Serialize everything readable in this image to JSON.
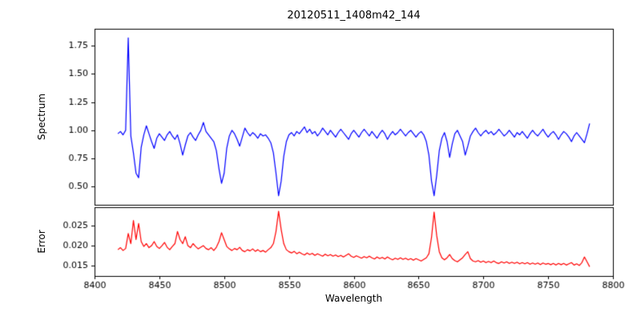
{
  "figure": {
    "title": "20120511_1408m42_144",
    "xlabel": "Wavelength",
    "background": "#ffffff",
    "spine_color": "#000000"
  },
  "axes": {
    "xlim": [
      8400,
      8800
    ],
    "xticks": [
      8400,
      8450,
      8500,
      8550,
      8600,
      8650,
      8700,
      8750,
      8800
    ],
    "xtick_labels": [
      "8400",
      "8450",
      "8500",
      "8550",
      "8600",
      "8650",
      "8700",
      "8750",
      "8800"
    ]
  },
  "chart_data": [
    {
      "type": "line",
      "name": "spectrum",
      "ylabel": "Spectrum",
      "color": "#0000ff",
      "ylim": [
        0.34,
        1.9
      ],
      "yticks": [
        0.5,
        0.75,
        1.0,
        1.25,
        1.5,
        1.75
      ],
      "ytick_labels": [
        "0.50",
        "0.75",
        "1.00",
        "1.25",
        "1.50",
        "1.75"
      ],
      "x": [
        8418,
        8420,
        8422,
        8424,
        8426,
        8428,
        8430,
        8432,
        8434,
        8436,
        8438,
        8440,
        8442,
        8444,
        8446,
        8448,
        8450,
        8452,
        8454,
        8456,
        8458,
        8460,
        8462,
        8464,
        8466,
        8468,
        8470,
        8472,
        8474,
        8476,
        8478,
        8480,
        8482,
        8484,
        8486,
        8488,
        8490,
        8492,
        8494,
        8496,
        8498,
        8500,
        8502,
        8504,
        8506,
        8508,
        8510,
        8512,
        8514,
        8516,
        8518,
        8520,
        8522,
        8524,
        8526,
        8528,
        8530,
        8532,
        8534,
        8536,
        8538,
        8540,
        8542,
        8544,
        8546,
        8548,
        8550,
        8552,
        8554,
        8556,
        8558,
        8560,
        8562,
        8564,
        8566,
        8568,
        8570,
        8572,
        8574,
        8576,
        8578,
        8580,
        8582,
        8584,
        8586,
        8588,
        8590,
        8592,
        8594,
        8596,
        8598,
        8600,
        8602,
        8604,
        8606,
        8608,
        8610,
        8612,
        8614,
        8616,
        8618,
        8620,
        8622,
        8624,
        8626,
        8628,
        8630,
        8632,
        8634,
        8636,
        8638,
        8640,
        8642,
        8644,
        8646,
        8648,
        8650,
        8652,
        8654,
        8656,
        8658,
        8660,
        8662,
        8664,
        8666,
        8668,
        8670,
        8672,
        8674,
        8676,
        8678,
        8680,
        8682,
        8684,
        8686,
        8688,
        8690,
        8692,
        8694,
        8696,
        8698,
        8700,
        8702,
        8704,
        8706,
        8708,
        8710,
        8712,
        8714,
        8716,
        8718,
        8720,
        8722,
        8724,
        8726,
        8728,
        8730,
        8732,
        8734,
        8736,
        8738,
        8740,
        8742,
        8744,
        8746,
        8748,
        8750,
        8752,
        8754,
        8756,
        8758,
        8760,
        8762,
        8764,
        8766,
        8768,
        8770,
        8772,
        8774,
        8776,
        8778,
        8780,
        8782
      ],
      "values": [
        0.97,
        0.99,
        0.96,
        1.0,
        1.82,
        0.95,
        0.8,
        0.62,
        0.58,
        0.85,
        0.96,
        1.04,
        0.97,
        0.9,
        0.84,
        0.93,
        0.97,
        0.94,
        0.91,
        0.96,
        0.99,
        0.95,
        0.92,
        0.96,
        0.88,
        0.78,
        0.87,
        0.95,
        0.98,
        0.94,
        0.91,
        0.96,
        1.0,
        1.07,
        0.99,
        0.96,
        0.93,
        0.9,
        0.82,
        0.66,
        0.53,
        0.62,
        0.84,
        0.95,
        1.0,
        0.97,
        0.92,
        0.86,
        0.94,
        1.02,
        0.98,
        0.95,
        0.98,
        0.96,
        0.93,
        0.97,
        0.95,
        0.96,
        0.93,
        0.89,
        0.8,
        0.62,
        0.42,
        0.55,
        0.77,
        0.9,
        0.96,
        0.98,
        0.95,
        0.99,
        0.97,
        1.0,
        1.03,
        0.98,
        1.01,
        0.97,
        0.99,
        0.95,
        0.98,
        1.02,
        0.99,
        0.96,
        1.0,
        0.97,
        0.94,
        0.98,
        1.01,
        0.98,
        0.95,
        0.92,
        0.97,
        1.0,
        0.97,
        0.94,
        0.98,
        1.01,
        0.98,
        0.95,
        0.99,
        0.96,
        0.93,
        0.97,
        1.0,
        0.97,
        0.92,
        0.96,
        0.99,
        0.96,
        0.98,
        1.01,
        0.98,
        0.95,
        0.98,
        1.0,
        0.97,
        0.94,
        0.97,
        0.99,
        0.96,
        0.9,
        0.78,
        0.55,
        0.42,
        0.6,
        0.82,
        0.93,
        0.98,
        0.9,
        0.76,
        0.88,
        0.97,
        1.0,
        0.95,
        0.9,
        0.78,
        0.86,
        0.95,
        0.99,
        1.02,
        0.98,
        0.95,
        0.98,
        1.0,
        0.97,
        0.99,
        0.96,
        0.98,
        1.01,
        0.98,
        0.95,
        0.97,
        1.0,
        0.97,
        0.94,
        0.98,
        0.96,
        0.99,
        0.96,
        0.93,
        0.97,
        1.0,
        0.97,
        0.95,
        0.98,
        1.01,
        0.97,
        0.94,
        0.97,
        0.99,
        0.96,
        0.92,
        0.96,
        0.99,
        0.97,
        0.94,
        0.9,
        0.95,
        0.98,
        0.95,
        0.92,
        0.89,
        0.97,
        1.06
      ]
    },
    {
      "type": "line",
      "name": "error",
      "ylabel": "Error",
      "color": "#ff0000",
      "ylim": [
        0.0125,
        0.0295
      ],
      "yticks": [
        0.015,
        0.02,
        0.025
      ],
      "ytick_labels": [
        "0.015",
        "0.020",
        "0.025"
      ],
      "x": [
        8418,
        8420,
        8422,
        8424,
        8426,
        8428,
        8430,
        8432,
        8434,
        8436,
        8438,
        8440,
        8442,
        8444,
        8446,
        8448,
        8450,
        8452,
        8454,
        8456,
        8458,
        8460,
        8462,
        8464,
        8466,
        8468,
        8470,
        8472,
        8474,
        8476,
        8478,
        8480,
        8482,
        8484,
        8486,
        8488,
        8490,
        8492,
        8494,
        8496,
        8498,
        8500,
        8502,
        8504,
        8506,
        8508,
        8510,
        8512,
        8514,
        8516,
        8518,
        8520,
        8522,
        8524,
        8526,
        8528,
        8530,
        8532,
        8534,
        8536,
        8538,
        8540,
        8542,
        8544,
        8546,
        8548,
        8550,
        8552,
        8554,
        8556,
        8558,
        8560,
        8562,
        8564,
        8566,
        8568,
        8570,
        8572,
        8574,
        8576,
        8578,
        8580,
        8582,
        8584,
        8586,
        8588,
        8590,
        8592,
        8594,
        8596,
        8598,
        8600,
        8602,
        8604,
        8606,
        8608,
        8610,
        8612,
        8614,
        8616,
        8618,
        8620,
        8622,
        8624,
        8626,
        8628,
        8630,
        8632,
        8634,
        8636,
        8638,
        8640,
        8642,
        8644,
        8646,
        8648,
        8650,
        8652,
        8654,
        8656,
        8658,
        8660,
        8662,
        8664,
        8666,
        8668,
        8670,
        8672,
        8674,
        8676,
        8678,
        8680,
        8682,
        8684,
        8686,
        8688,
        8690,
        8692,
        8694,
        8696,
        8698,
        8700,
        8702,
        8704,
        8706,
        8708,
        8710,
        8712,
        8714,
        8716,
        8718,
        8720,
        8722,
        8724,
        8726,
        8728,
        8730,
        8732,
        8734,
        8736,
        8738,
        8740,
        8742,
        8744,
        8746,
        8748,
        8750,
        8752,
        8754,
        8756,
        8758,
        8760,
        8762,
        8764,
        8766,
        8768,
        8770,
        8772,
        8774,
        8776,
        8778,
        8780,
        8782
      ],
      "values": [
        0.019,
        0.0195,
        0.0188,
        0.0193,
        0.023,
        0.0205,
        0.0262,
        0.0215,
        0.0255,
        0.021,
        0.0198,
        0.0205,
        0.0195,
        0.02,
        0.021,
        0.0198,
        0.0193,
        0.02,
        0.0208,
        0.0196,
        0.019,
        0.0198,
        0.0205,
        0.0235,
        0.0215,
        0.0205,
        0.0222,
        0.02,
        0.0195,
        0.0205,
        0.0198,
        0.0192,
        0.0196,
        0.02,
        0.0193,
        0.019,
        0.0195,
        0.0188,
        0.0196,
        0.021,
        0.0232,
        0.0215,
        0.0198,
        0.0192,
        0.0188,
        0.0193,
        0.019,
        0.0196,
        0.0188,
        0.0185,
        0.019,
        0.0187,
        0.0192,
        0.0186,
        0.019,
        0.0185,
        0.0188,
        0.0184,
        0.019,
        0.0195,
        0.0205,
        0.0235,
        0.0285,
        0.024,
        0.0205,
        0.019,
        0.0185,
        0.0182,
        0.0186,
        0.018,
        0.0184,
        0.018,
        0.0177,
        0.0182,
        0.0178,
        0.0181,
        0.0176,
        0.018,
        0.0177,
        0.0174,
        0.0179,
        0.0175,
        0.0178,
        0.0174,
        0.0177,
        0.0173,
        0.0176,
        0.0172,
        0.0176,
        0.018,
        0.0174,
        0.0171,
        0.0175,
        0.0172,
        0.0169,
        0.0173,
        0.017,
        0.0174,
        0.017,
        0.0167,
        0.0172,
        0.0168,
        0.0171,
        0.0167,
        0.0172,
        0.0168,
        0.0165,
        0.0169,
        0.0166,
        0.017,
        0.0166,
        0.0169,
        0.0165,
        0.0168,
        0.0164,
        0.0168,
        0.0165,
        0.0162,
        0.0166,
        0.017,
        0.018,
        0.022,
        0.0283,
        0.0225,
        0.0185,
        0.017,
        0.0165,
        0.017,
        0.0178,
        0.0168,
        0.0163,
        0.016,
        0.0165,
        0.017,
        0.0178,
        0.0185,
        0.0168,
        0.0162,
        0.016,
        0.0163,
        0.0159,
        0.0162,
        0.0158,
        0.0161,
        0.0158,
        0.0162,
        0.0158,
        0.0156,
        0.016,
        0.0157,
        0.016,
        0.0156,
        0.0159,
        0.0156,
        0.0159,
        0.0155,
        0.0158,
        0.0155,
        0.0158,
        0.0154,
        0.0157,
        0.0154,
        0.0157,
        0.0153,
        0.0157,
        0.0154,
        0.0156,
        0.0153,
        0.0156,
        0.0152,
        0.0156,
        0.0153,
        0.0156,
        0.0152,
        0.0155,
        0.0158,
        0.0152,
        0.0155,
        0.0151,
        0.0158,
        0.0172,
        0.016,
        0.0148
      ]
    }
  ]
}
